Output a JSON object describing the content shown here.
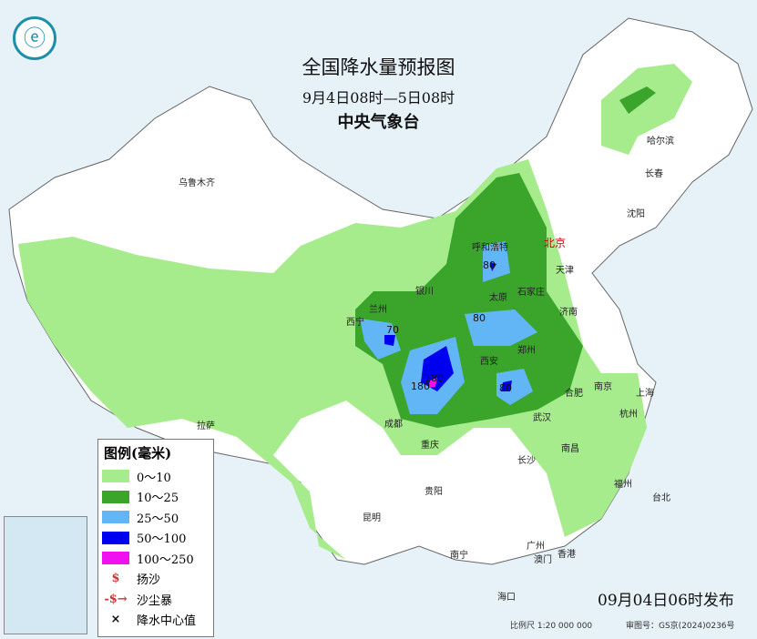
{
  "header": {
    "title": "全国降水量预报图",
    "period": "9月4日08时—5日08时",
    "issuer": "中央气象台"
  },
  "logo": {
    "icon": "cma-logo-icon"
  },
  "legend": {
    "title": "图例(毫米)",
    "items": [
      {
        "label": "0～10",
        "color": "#a6ec8c"
      },
      {
        "label": "10～25",
        "color": "#3aa52a"
      },
      {
        "label": "25～50",
        "color": "#62b6f5"
      },
      {
        "label": "50～100",
        "color": "#0000f0"
      },
      {
        "label": "100～250",
        "color": "#f010f0"
      }
    ],
    "symbols": [
      {
        "label": "扬沙",
        "icon": "blowing-sand-icon"
      },
      {
        "label": "沙尘暴",
        "icon": "sandstorm-icon"
      },
      {
        "label": "降水中心值",
        "icon": "cross-marker-icon"
      }
    ]
  },
  "cities": [
    "乌鲁木齐",
    "哈尔滨",
    "长春",
    "沈阳",
    "呼和浩特",
    "北京",
    "天津",
    "银川",
    "太原",
    "石家庄",
    "济南",
    "西宁",
    "兰州",
    "郑州",
    "西安",
    "合肥",
    "南京",
    "上海",
    "成都",
    "武汉",
    "杭州",
    "重庆",
    "拉萨",
    "长沙",
    "南昌",
    "福州",
    "贵阳",
    "台北",
    "昆明",
    "广州",
    "南宁",
    "澳门",
    "香港",
    "海口"
  ],
  "center_values": [
    "80",
    "70",
    "80",
    "180",
    "180",
    "80"
  ],
  "footer": {
    "issued": "09月04日06时发布",
    "scale": "比例尺 1:20 000 000",
    "approval": "审图号：GS京(2024)0236号"
  }
}
